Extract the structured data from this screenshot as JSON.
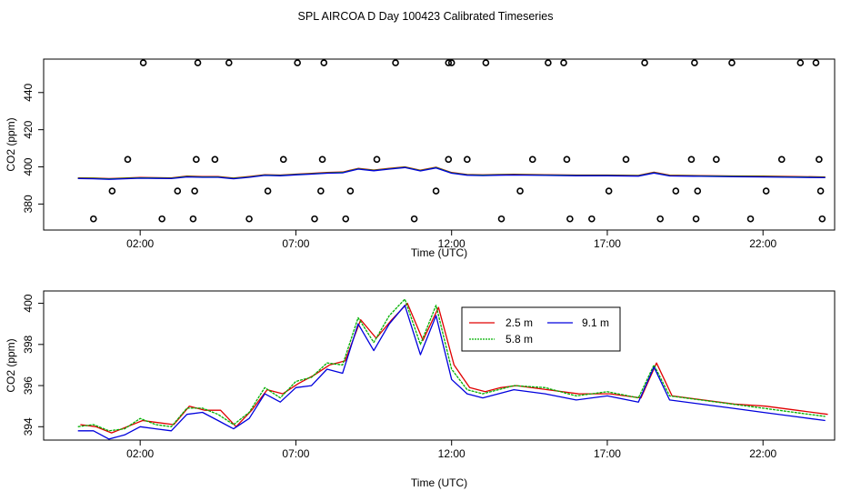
{
  "title": "SPL AIRCOA D  Day 100423  Calibrated Timeseries",
  "colors": {
    "s25": "#e00000",
    "s58": "#00b000",
    "s91": "#0000dd",
    "axis": "#000000"
  },
  "chart_data": [
    {
      "type": "line",
      "id": "top",
      "xlabel": "Time (UTC)",
      "ylabel": "CO2 (ppm)",
      "xlim": [
        -1.1,
        24.3
      ],
      "ylim": [
        366,
        458
      ],
      "xticks": [
        2,
        7,
        12,
        17,
        22
      ],
      "xtick_labels": [
        "02:00",
        "07:00",
        "12:00",
        "17:00",
        "22:00"
      ],
      "yticks": [
        380,
        400,
        420,
        440
      ],
      "ytick_labels": [
        "380",
        "400",
        "420",
        "440"
      ],
      "line": {
        "x": [
          0,
          0.5,
          1,
          1.5,
          2,
          2.5,
          3,
          3.5,
          4,
          4.5,
          5,
          5.5,
          6,
          6.5,
          7,
          7.5,
          8,
          8.5,
          9,
          9.5,
          10,
          10.5,
          11,
          11.5,
          12,
          12.5,
          13,
          13.5,
          14,
          15,
          16,
          17,
          18,
          18.5,
          19,
          20,
          21,
          22,
          23,
          24
        ],
        "y": [
          394.1,
          394.0,
          393.7,
          394.0,
          394.3,
          394.2,
          394.1,
          395.0,
          394.8,
          394.8,
          394.0,
          394.8,
          395.8,
          395.6,
          396.1,
          396.5,
          397.0,
          397.2,
          399.2,
          398.3,
          399.2,
          400.0,
          398.2,
          399.8,
          397.0,
          395.9,
          395.7,
          395.9,
          396.0,
          395.8,
          395.6,
          395.6,
          395.4,
          397.1,
          395.5,
          395.3,
          395.1,
          395.0,
          394.8,
          394.6
        ]
      },
      "points": {
        "x": [
          0.5,
          1.1,
          1.6,
          2.1,
          2.7,
          3.2,
          3.7,
          3.75,
          3.8,
          3.85,
          4.4,
          4.85,
          5.5,
          6.1,
          6.6,
          7.05,
          7.6,
          7.8,
          7.85,
          7.9,
          8.6,
          8.75,
          9.6,
          10.2,
          10.8,
          11.5,
          11.9,
          11.9,
          12.0,
          12.5,
          13.1,
          13.6,
          14.2,
          14.6,
          15.1,
          15.6,
          15.7,
          15.8,
          16.5,
          17.05,
          17.6,
          18.2,
          18.7,
          19.2,
          19.7,
          19.8,
          19.85,
          19.9,
          20.5,
          21.0,
          21.6,
          22.1,
          22.6,
          23.2,
          23.7,
          23.8,
          23.85,
          23.9
        ],
        "y": [
          372,
          387,
          404,
          456,
          372,
          387,
          372,
          387,
          404,
          456,
          404,
          456,
          372,
          387,
          404,
          456,
          372,
          387,
          404,
          456,
          372,
          387,
          404,
          456,
          372,
          387,
          404,
          456,
          456,
          404,
          456,
          372,
          387,
          404,
          456,
          456,
          404,
          372,
          372,
          387,
          404,
          456,
          372,
          387,
          404,
          456,
          372,
          387,
          404,
          456,
          372,
          387,
          404,
          456,
          456,
          404,
          387,
          372
        ]
      }
    },
    {
      "type": "line",
      "id": "bottom",
      "xlabel": "Time (UTC)",
      "ylabel": "CO2 (ppm)",
      "xlim": [
        -1.1,
        24.3
      ],
      "ylim": [
        393.35,
        400.6
      ],
      "xticks": [
        2,
        7,
        12,
        17,
        22
      ],
      "xtick_labels": [
        "02:00",
        "07:00",
        "12:00",
        "17:00",
        "22:00"
      ],
      "yticks": [
        394,
        396,
        398,
        400
      ],
      "ytick_labels": [
        "394",
        "396",
        "398",
        "400"
      ],
      "legend": {
        "position": "top-right-of-center",
        "entries": [
          "2.5 m",
          "5.8 m",
          "9.1 m"
        ]
      },
      "x": [
        0,
        0.5,
        1,
        1.5,
        2,
        2.5,
        3,
        3.5,
        4,
        4.5,
        5,
        5.5,
        6,
        6.5,
        7,
        7.5,
        8,
        8.5,
        9,
        9.5,
        10,
        10.5,
        11,
        11.5,
        12,
        12.5,
        13,
        13.5,
        14,
        15,
        16,
        17,
        18,
        18.5,
        19,
        20,
        21,
        22,
        23,
        24
      ],
      "series": [
        {
          "name": "2.5 m",
          "values": [
            394.1,
            394.0,
            393.7,
            394.0,
            394.3,
            394.2,
            394.1,
            395.0,
            394.8,
            394.8,
            394.0,
            394.8,
            395.8,
            395.6,
            396.1,
            396.5,
            397.0,
            397.2,
            399.2,
            398.3,
            399.2,
            400.0,
            398.2,
            399.8,
            397.0,
            395.9,
            395.7,
            395.9,
            396.0,
            395.8,
            395.6,
            395.6,
            395.4,
            397.1,
            395.5,
            395.3,
            395.1,
            395.0,
            394.8,
            394.6
          ]
        },
        {
          "name": "5.8 m",
          "values": [
            394.0,
            394.1,
            393.8,
            393.9,
            394.4,
            394.1,
            394.0,
            394.9,
            394.9,
            394.6,
            394.1,
            394.7,
            395.9,
            395.4,
            396.2,
            396.4,
            397.1,
            397.0,
            399.3,
            398.1,
            399.4,
            400.2,
            398.0,
            399.9,
            396.8,
            395.8,
            395.6,
            395.8,
            396.0,
            395.9,
            395.5,
            395.7,
            395.4,
            397.0,
            395.5,
            395.3,
            395.1,
            394.9,
            394.7,
            394.5
          ]
        },
        {
          "name": "9.1 m",
          "values": [
            393.8,
            393.8,
            393.4,
            393.6,
            394.0,
            393.9,
            393.8,
            394.6,
            394.7,
            394.3,
            393.9,
            394.4,
            395.6,
            395.2,
            395.9,
            396.0,
            396.8,
            396.6,
            399.0,
            397.7,
            399.0,
            399.9,
            397.5,
            399.4,
            396.3,
            395.6,
            395.4,
            395.6,
            395.8,
            395.6,
            395.3,
            395.5,
            395.2,
            396.9,
            395.3,
            395.1,
            394.9,
            394.7,
            394.5,
            394.3
          ]
        }
      ]
    }
  ]
}
